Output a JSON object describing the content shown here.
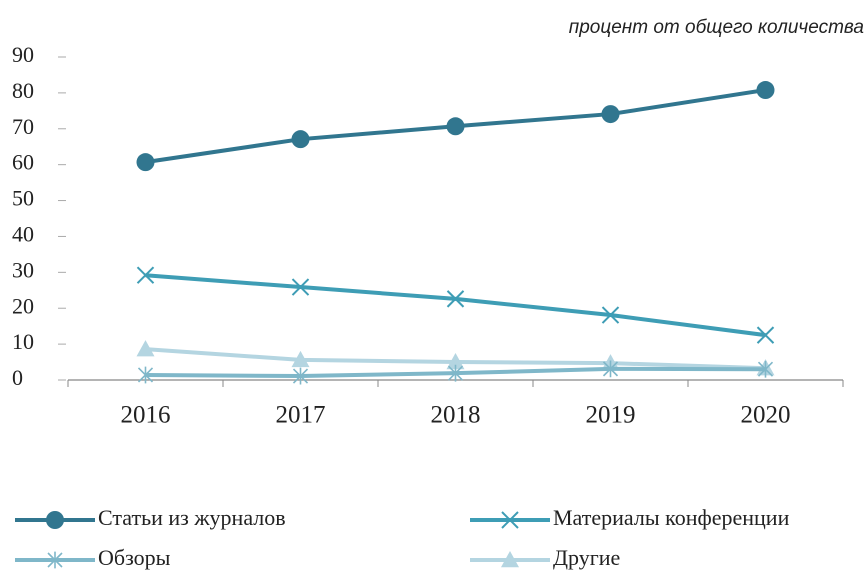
{
  "chart_data": {
    "type": "line",
    "note": "процент от общего количества",
    "categories": [
      "2016",
      "2017",
      "2018",
      "2019",
      "2020"
    ],
    "series": [
      {
        "name": "Статьи из журналов",
        "color": "#31768f",
        "marker": "circle",
        "values": [
          60.7,
          67.1,
          70.7,
          74.1,
          80.8
        ]
      },
      {
        "name": "Материалы конференции",
        "color": "#3e9db5",
        "marker": "x",
        "values": [
          29.2,
          25.9,
          22.6,
          18.1,
          12.5
        ]
      },
      {
        "name": "Обзоры",
        "color": "#7fb7c9",
        "marker": "asterisk",
        "values": [
          1.4,
          1.1,
          1.9,
          3.1,
          3.0
        ]
      },
      {
        "name": "Другие",
        "color": "#b4d5e1",
        "marker": "triangle",
        "values": [
          8.6,
          5.6,
          5.0,
          4.7,
          3.3
        ]
      }
    ],
    "ylim": [
      0,
      90
    ],
    "yticks": [
      0,
      10,
      20,
      30,
      40,
      50,
      60,
      70,
      80,
      90
    ],
    "grid": false,
    "legend": "bottom"
  }
}
